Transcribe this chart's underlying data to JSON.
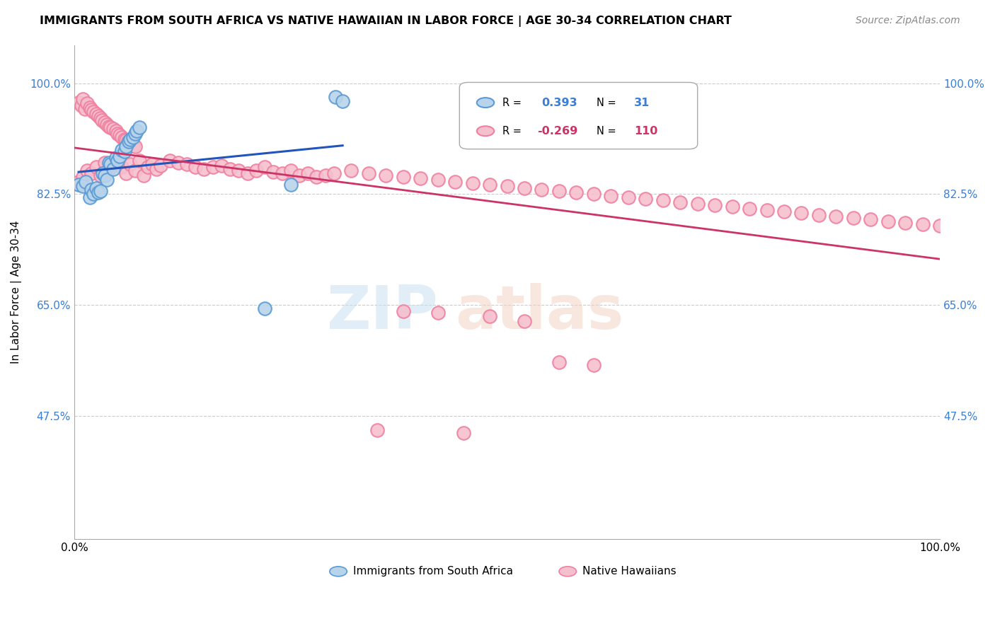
{
  "title": "IMMIGRANTS FROM SOUTH AFRICA VS NATIVE HAWAIIAN IN LABOR FORCE | AGE 30-34 CORRELATION CHART",
  "source": "Source: ZipAtlas.com",
  "ylabel": "In Labor Force | Age 30-34",
  "r_blue": 0.393,
  "n_blue": 31,
  "r_pink": -0.269,
  "n_pink": 110,
  "legend_label_blue": "Immigrants from South Africa",
  "legend_label_pink": "Native Hawaiians",
  "blue_color": "#b8d4ea",
  "pink_color": "#f5c0ce",
  "blue_edge": "#5b9bd5",
  "pink_edge": "#f080a0",
  "trendline_blue": "#2255bb",
  "trendline_pink": "#cc3366",
  "xlim": [
    0.0,
    1.0
  ],
  "ylim": [
    0.28,
    1.06
  ],
  "yticks": [
    0.475,
    0.65,
    0.825,
    1.0
  ],
  "ytick_labels": [
    "47.5%",
    "65.0%",
    "82.5%",
    "100.0%"
  ],
  "blue_x": [
    0.005,
    0.01,
    0.013,
    0.018,
    0.02,
    0.022,
    0.025,
    0.028,
    0.03,
    0.033,
    0.035,
    0.038,
    0.04,
    0.042,
    0.045,
    0.048,
    0.05,
    0.052,
    0.055,
    0.058,
    0.06,
    0.063,
    0.065,
    0.068,
    0.07,
    0.072,
    0.075,
    0.22,
    0.25,
    0.302,
    0.31
  ],
  "blue_y": [
    0.84,
    0.838,
    0.845,
    0.82,
    0.832,
    0.825,
    0.835,
    0.828,
    0.83,
    0.858,
    0.855,
    0.848,
    0.875,
    0.872,
    0.865,
    0.882,
    0.878,
    0.885,
    0.895,
    0.892,
    0.9,
    0.908,
    0.912,
    0.915,
    0.92,
    0.925,
    0.93,
    0.645,
    0.84,
    0.978,
    0.972
  ],
  "pink_x": [
    0.005,
    0.008,
    0.01,
    0.012,
    0.015,
    0.018,
    0.02,
    0.022,
    0.025,
    0.028,
    0.03,
    0.032,
    0.035,
    0.038,
    0.04,
    0.042,
    0.045,
    0.048,
    0.05,
    0.052,
    0.055,
    0.058,
    0.06,
    0.062,
    0.065,
    0.068,
    0.07,
    0.005,
    0.01,
    0.015,
    0.02,
    0.025,
    0.03,
    0.035,
    0.04,
    0.045,
    0.05,
    0.055,
    0.06,
    0.065,
    0.07,
    0.075,
    0.08,
    0.085,
    0.09,
    0.095,
    0.1,
    0.11,
    0.12,
    0.13,
    0.14,
    0.15,
    0.16,
    0.17,
    0.18,
    0.19,
    0.2,
    0.21,
    0.22,
    0.23,
    0.24,
    0.25,
    0.26,
    0.27,
    0.28,
    0.29,
    0.3,
    0.32,
    0.34,
    0.36,
    0.38,
    0.4,
    0.42,
    0.44,
    0.46,
    0.48,
    0.5,
    0.52,
    0.54,
    0.56,
    0.58,
    0.6,
    0.62,
    0.64,
    0.66,
    0.68,
    0.7,
    0.72,
    0.74,
    0.76,
    0.78,
    0.8,
    0.82,
    0.84,
    0.86,
    0.88,
    0.9,
    0.92,
    0.94,
    0.96,
    0.98,
    1.0,
    0.38,
    0.42,
    0.48,
    0.52,
    0.56,
    0.6,
    0.35,
    0.45
  ],
  "pink_y": [
    0.97,
    0.965,
    0.975,
    0.96,
    0.968,
    0.962,
    0.958,
    0.955,
    0.952,
    0.948,
    0.945,
    0.942,
    0.938,
    0.935,
    0.932,
    0.93,
    0.928,
    0.925,
    0.92,
    0.918,
    0.915,
    0.912,
    0.91,
    0.908,
    0.905,
    0.902,
    0.9,
    0.845,
    0.852,
    0.862,
    0.858,
    0.868,
    0.855,
    0.875,
    0.865,
    0.87,
    0.875,
    0.868,
    0.858,
    0.872,
    0.862,
    0.878,
    0.855,
    0.868,
    0.872,
    0.865,
    0.87,
    0.878,
    0.875,
    0.872,
    0.868,
    0.865,
    0.868,
    0.87,
    0.865,
    0.862,
    0.858,
    0.862,
    0.868,
    0.86,
    0.858,
    0.862,
    0.855,
    0.858,
    0.852,
    0.855,
    0.858,
    0.862,
    0.858,
    0.855,
    0.852,
    0.85,
    0.848,
    0.845,
    0.842,
    0.84,
    0.838,
    0.835,
    0.832,
    0.83,
    0.828,
    0.825,
    0.822,
    0.82,
    0.818,
    0.815,
    0.812,
    0.81,
    0.808,
    0.805,
    0.802,
    0.8,
    0.798,
    0.795,
    0.792,
    0.79,
    0.788,
    0.785,
    0.782,
    0.78,
    0.778,
    0.775,
    0.64,
    0.638,
    0.632,
    0.625,
    0.56,
    0.555,
    0.452,
    0.448
  ]
}
